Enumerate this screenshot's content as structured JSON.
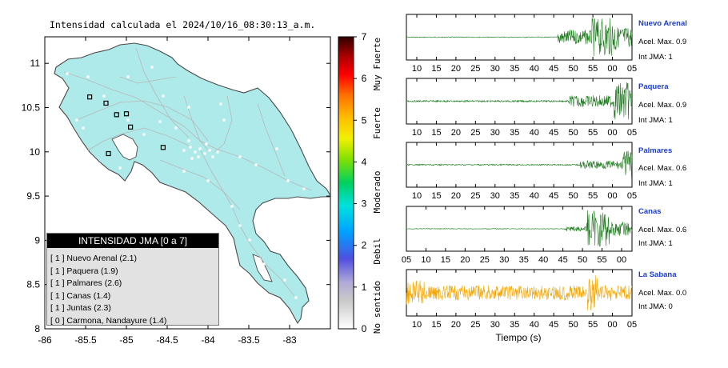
{
  "map": {
    "title": "Intensidad calculada el 2024/10/16_08:30:13_a.m.",
    "x_ticks": [
      "-86",
      "-85.5",
      "-85",
      "-84.5",
      "-84",
      "-83.5",
      "-83"
    ],
    "y_ticks": [
      "11",
      "10.5",
      "10",
      "9.5",
      "9",
      "8.5",
      "8"
    ],
    "colors": {
      "land": "#aeeaea",
      "road": "#b8b8b8",
      "station": "#000000"
    }
  },
  "colorbar": {
    "ticks": [
      "7",
      "6",
      "5",
      "4",
      "3",
      "2",
      "1",
      "0"
    ],
    "labels": [
      "Muy Fuerte",
      "Fuerte",
      "Moderado",
      "Debil",
      "No sentido"
    ]
  },
  "legend": {
    "title": "INTENSIDAD JMA [0 a 7]",
    "items": [
      "[ 1 ]  Nuevo Arenal (2.1)",
      "[ 1 ]  Paquera (1.9)",
      "[ 1 ]  Palmares (2.6)",
      "[ 1 ]  Canas (1.4)",
      "[ 1 ]  Juntas (2.3)",
      "[ 0 ]  Carmona, Nandayure (1.4)"
    ]
  },
  "traces": [
    {
      "station": "Nuevo Arenal",
      "acel": "Acel. Max. 0.9",
      "jma": "Int JMA: 1",
      "ticks": [
        "10",
        "15",
        "20",
        "25",
        "30",
        "35",
        "40",
        "45",
        "50",
        "55",
        "00",
        "05"
      ]
    },
    {
      "station": "Paquera",
      "acel": "Acel. Max. 0.9",
      "jma": "Int JMA: 1",
      "ticks": [
        "10",
        "15",
        "20",
        "25",
        "30",
        "35",
        "40",
        "45",
        "50",
        "55",
        "00",
        "05"
      ]
    },
    {
      "station": "Palmares",
      "acel": "Acel. Max. 0.6",
      "jma": "Int JMA: 1",
      "ticks": [
        "10",
        "15",
        "20",
        "25",
        "30",
        "35",
        "40",
        "45",
        "50",
        "55",
        "00",
        "05"
      ]
    },
    {
      "station": "Canas",
      "acel": "Acel. Max. 0.6",
      "jma": "Int JMA: 1",
      "ticks": [
        "05",
        "10",
        "15",
        "20",
        "25",
        "30",
        "35",
        "40",
        "45",
        "50",
        "55",
        "00"
      ]
    },
    {
      "station": "La Sabana",
      "acel": "Acel. Max. 0.0",
      "jma": "Int JMA: 0",
      "ticks": [
        "10",
        "15",
        "20",
        "25",
        "30",
        "35",
        "40",
        "45",
        "50",
        "55",
        "00",
        "05"
      ]
    }
  ],
  "seismo_xlabel": "Tiempo (s)",
  "trace_colors": {
    "green": "#1a7a1a",
    "orange": "#f5a500",
    "label": "#1a3cd6"
  },
  "chart_data": [
    {
      "type": "scatter",
      "title": "Intensidad calculada el 2024/10/16_08:30:13_a.m.",
      "xlabel": "",
      "ylabel": "",
      "xlim": [
        -86,
        -82.5
      ],
      "ylim": [
        8,
        11.3
      ],
      "colorbar": {
        "range": [
          0,
          7
        ],
        "labels": [
          "No sentido",
          "Debil",
          "Moderado",
          "Fuerte",
          "Muy Fuerte"
        ]
      },
      "series": [
        {
          "name": "stations",
          "x": [
            -85.45,
            -85.25,
            -85.12,
            -84.95,
            -85.0,
            -85.22,
            -84.55
          ],
          "y": [
            10.62,
            10.55,
            10.42,
            10.28,
            10.43,
            9.98,
            10.05
          ]
        }
      ]
    },
    {
      "type": "line",
      "xlabel": "Tiempo (s)",
      "series": [
        {
          "name": "Nuevo Arenal",
          "acel_max": 0.9,
          "int_jma": 1
        },
        {
          "name": "Paquera",
          "acel_max": 0.9,
          "int_jma": 1
        },
        {
          "name": "Palmares",
          "acel_max": 0.6,
          "int_jma": 1
        },
        {
          "name": "Canas",
          "acel_max": 0.6,
          "int_jma": 1
        },
        {
          "name": "La Sabana",
          "acel_max": 0.0,
          "int_jma": 0
        }
      ]
    }
  ]
}
